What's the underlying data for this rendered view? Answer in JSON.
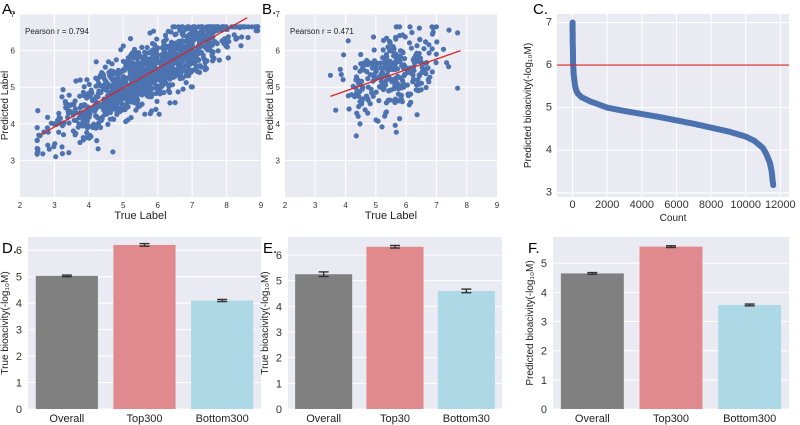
{
  "chart_data": [
    {
      "panel_label": "A.",
      "type": "scatter",
      "xlabel": "True Label",
      "ylabel": "Predicted Label",
      "xlim": [
        2,
        9
      ],
      "ylim": [
        2,
        7
      ],
      "xticks": [
        2,
        3,
        4,
        5,
        6,
        7,
        8,
        9
      ],
      "yticks": [
        3,
        4,
        5,
        6,
        7
      ],
      "annotation": "Pearson r = 0.794",
      "fit_line": {
        "x": [
          2.6,
          8.6
        ],
        "y": [
          3.7,
          6.9
        ]
      },
      "point_cloud": {
        "n": 1200,
        "x_range": [
          2.5,
          8.9
        ],
        "slope": 0.53,
        "intercept": 2.32,
        "spread": 0.42,
        "seed": 11
      }
    },
    {
      "panel_label": "B.",
      "type": "scatter",
      "xlabel": "True Label",
      "ylabel": "Predicted Label",
      "xlim": [
        2,
        9
      ],
      "ylim": [
        2,
        7
      ],
      "xticks": [
        2,
        3,
        4,
        5,
        6,
        7,
        8,
        9
      ],
      "yticks": [
        3,
        4,
        5,
        6,
        7
      ],
      "annotation": "Pearson r = 0.471",
      "fit_line": {
        "x": [
          3.5,
          7.8
        ],
        "y": [
          4.75,
          6.0
        ]
      },
      "point_cloud": {
        "n": 300,
        "x_range": [
          3.5,
          7.7
        ],
        "slope": 0.29,
        "intercept": 3.74,
        "spread": 0.55,
        "seed": 23
      }
    },
    {
      "panel_label": "C.",
      "type": "scatter",
      "xlabel": "Count",
      "ylabel": "Predicted bioacivity(-log₁₀M)",
      "xlim": [
        -900,
        12500
      ],
      "ylim": [
        2.9,
        7.2
      ],
      "xticks": [
        0,
        2000,
        4000,
        6000,
        8000,
        10000,
        12000
      ],
      "yticks": [
        3,
        4,
        5,
        6,
        7
      ],
      "hline": 6.0,
      "ranked_curve": {
        "n": 11600,
        "x": [
          0,
          10,
          30,
          60,
          100,
          150,
          200,
          300,
          500,
          1000,
          2000,
          3000,
          4000,
          5000,
          6000,
          7000,
          8000,
          9000,
          10000,
          10500,
          11000,
          11200,
          11400,
          11500,
          11550,
          11600
        ],
        "y": [
          7.0,
          6.5,
          6.05,
          5.8,
          5.65,
          5.5,
          5.42,
          5.33,
          5.25,
          5.15,
          5.0,
          4.92,
          4.85,
          4.78,
          4.7,
          4.62,
          4.53,
          4.44,
          4.32,
          4.22,
          4.05,
          3.9,
          3.7,
          3.5,
          3.3,
          3.15
        ]
      }
    },
    {
      "panel_label": "D.",
      "type": "bar",
      "ylabel": "True bioacivity(-log₁₀M)",
      "categories": [
        "Overall",
        "Top300",
        "Bottom300"
      ],
      "values": [
        5.03,
        6.2,
        4.1
      ],
      "errors": [
        0.03,
        0.05,
        0.04
      ],
      "ylim": [
        0,
        6.5
      ],
      "yticks": [
        0,
        1,
        2,
        3,
        4,
        5,
        6
      ],
      "colors": [
        "#808080",
        "#e08a8e",
        "#add8e6"
      ]
    },
    {
      "panel_label": "E.",
      "type": "bar",
      "ylabel": "True bioacivity(-log₁₀M)",
      "categories": [
        "Overall",
        "Top30",
        "Bottom30"
      ],
      "values": [
        5.25,
        6.32,
        4.6
      ],
      "errors": [
        0.09,
        0.05,
        0.07
      ],
      "ylim": [
        0,
        6.7
      ],
      "yticks": [
        0,
        1,
        2,
        3,
        4,
        5,
        6
      ],
      "colors": [
        "#808080",
        "#e08a8e",
        "#add8e6"
      ]
    },
    {
      "panel_label": "F.",
      "type": "bar",
      "ylabel": "Predicted bioacivity(-log₁₀M)",
      "categories": [
        "Overall",
        "Top300",
        "Bottom300"
      ],
      "values": [
        4.65,
        5.57,
        3.57
      ],
      "errors": [
        0.03,
        0.03,
        0.03
      ],
      "ylim": [
        0,
        5.9
      ],
      "yticks": [
        0,
        1,
        2,
        3,
        4,
        5
      ],
      "colors": [
        "#808080",
        "#e08a8e",
        "#add8e6"
      ]
    }
  ],
  "colors": {
    "background": "#eaeaf2",
    "grid": "#ffffff",
    "points": "#4c72b0",
    "fit_line": "#d62728",
    "error_bar": "#333333"
  }
}
